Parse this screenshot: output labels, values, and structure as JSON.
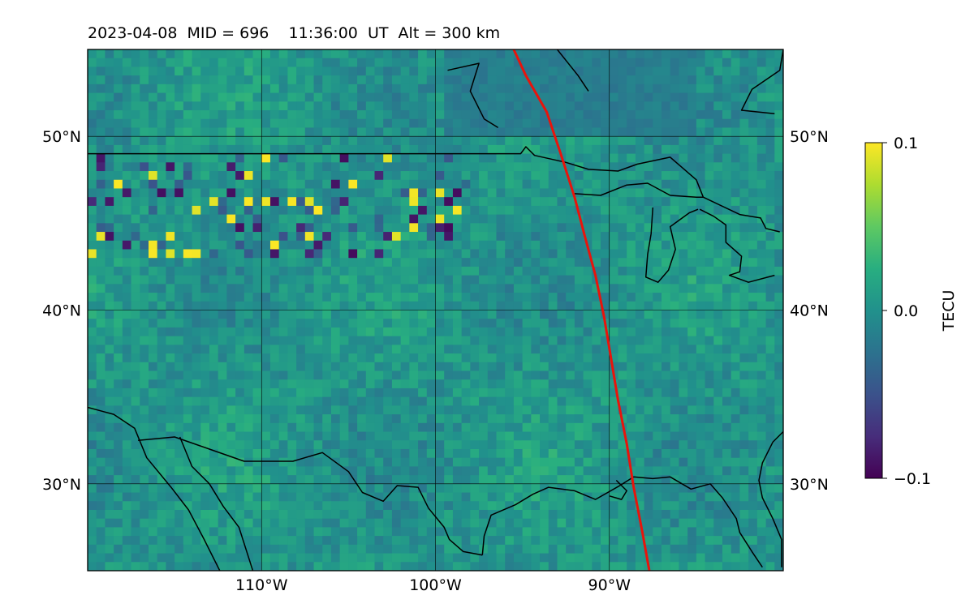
{
  "title": "2023-04-08  MID = 696    11:36:00  UT  Alt = 300 km",
  "map": {
    "lon_range": [
      -120,
      -80
    ],
    "lat_range": [
      25,
      55
    ],
    "lat_ticks": [
      {
        "value": 50,
        "label": "50°N"
      },
      {
        "value": 40,
        "label": "40°N"
      },
      {
        "value": 30,
        "label": "30°N"
      }
    ],
    "lon_ticks": [
      {
        "value": -110,
        "label": "110°W"
      },
      {
        "value": -100,
        "label": "100°W"
      },
      {
        "value": -90,
        "label": "90°W"
      }
    ],
    "gridlines": true,
    "field_colormap": "viridis",
    "eclipse_path_color": "#e8140c",
    "eclipse_path": [
      [
        -95.5,
        55
      ],
      [
        -94.8,
        53.5
      ],
      [
        -93.6,
        51.4
      ],
      [
        -92.8,
        49
      ],
      [
        -92.0,
        46.5
      ],
      [
        -91.4,
        44.2
      ],
      [
        -90.8,
        42.0
      ],
      [
        -90.3,
        39.6
      ],
      [
        -89.9,
        37.2
      ],
      [
        -89.5,
        34.8
      ],
      [
        -89.0,
        32.3
      ],
      [
        -88.6,
        29.8
      ],
      [
        -88.1,
        27.2
      ],
      [
        -87.7,
        25
      ]
    ],
    "coastlines": [
      [
        [
          -120,
          49
        ],
        [
          -95.1,
          49
        ],
        [
          -94.8,
          49.4
        ],
        [
          -94.3,
          48.9
        ],
        [
          -92.5,
          48.5
        ],
        [
          -91.2,
          48.1
        ],
        [
          -89.5,
          48.0
        ],
        [
          -88.4,
          48.4
        ],
        [
          -86.5,
          48.8
        ],
        [
          -85.0,
          47.5
        ],
        [
          -84.6,
          46.5
        ]
      ],
      [
        [
          -92.0,
          46.7
        ],
        [
          -90.5,
          46.6
        ],
        [
          -89.0,
          47.2
        ],
        [
          -87.8,
          47.3
        ],
        [
          -86.5,
          46.6
        ],
        [
          -85.0,
          46.5
        ],
        [
          -84.6,
          46.5
        ]
      ],
      [
        [
          -84.6,
          46.5
        ],
        [
          -82.5,
          45.5
        ],
        [
          -81.3,
          45.3
        ],
        [
          -81.0,
          44.7
        ],
        [
          -80.2,
          44.5
        ]
      ],
      [
        [
          -87.5,
          45.9
        ],
        [
          -87.6,
          44.4
        ],
        [
          -87.8,
          43.2
        ],
        [
          -87.9,
          41.9
        ],
        [
          -87.2,
          41.6
        ],
        [
          -86.6,
          42.3
        ],
        [
          -86.2,
          43.5
        ],
        [
          -86.5,
          44.8
        ],
        [
          -85.4,
          45.6
        ],
        [
          -84.9,
          45.8
        ]
      ],
      [
        [
          -84.8,
          45.8
        ],
        [
          -84.0,
          45.4
        ],
        [
          -83.3,
          44.9
        ],
        [
          -83.3,
          43.9
        ],
        [
          -82.4,
          43.1
        ],
        [
          -82.5,
          42.2
        ],
        [
          -83.1,
          42.0
        ],
        [
          -82.0,
          41.6
        ],
        [
          -80.5,
          42.0
        ]
      ],
      [
        [
          -120,
          34.4
        ],
        [
          -118.5,
          34.0
        ],
        [
          -117.3,
          33.2
        ],
        [
          -116.6,
          31.5
        ],
        [
          -115.2,
          29.8
        ],
        [
          -114.2,
          28.5
        ],
        [
          -113.3,
          26.8
        ],
        [
          -112.4,
          25
        ]
      ],
      [
        [
          -114.7,
          32.7
        ],
        [
          -114.0,
          31.0
        ],
        [
          -113.0,
          30.0
        ],
        [
          -112.2,
          28.7
        ],
        [
          -111.3,
          27.5
        ],
        [
          -110.5,
          25.0
        ]
      ],
      [
        [
          -117.1,
          32.5
        ],
        [
          -115.0,
          32.7
        ],
        [
          -113.0,
          32.0
        ],
        [
          -111.0,
          31.3
        ],
        [
          -108.2,
          31.3
        ],
        [
          -106.5,
          31.8
        ],
        [
          -105.0,
          30.7
        ],
        [
          -104.2,
          29.5
        ],
        [
          -103.0,
          29.0
        ],
        [
          -102.2,
          29.9
        ],
        [
          -101.0,
          29.8
        ],
        [
          -100.4,
          28.6
        ],
        [
          -99.5,
          27.5
        ],
        [
          -99.2,
          26.8
        ],
        [
          -98.4,
          26.1
        ],
        [
          -97.3,
          25.9
        ]
      ],
      [
        [
          -97.3,
          25.9
        ],
        [
          -97.2,
          27.0
        ],
        [
          -96.8,
          28.2
        ],
        [
          -95.4,
          28.8
        ],
        [
          -94.4,
          29.4
        ],
        [
          -93.5,
          29.8
        ],
        [
          -92.0,
          29.6
        ],
        [
          -90.8,
          29.1
        ],
        [
          -89.4,
          29.9
        ],
        [
          -88.6,
          30.4
        ],
        [
          -87.5,
          30.3
        ],
        [
          -86.5,
          30.4
        ],
        [
          -85.3,
          29.7
        ],
        [
          -84.2,
          30.0
        ],
        [
          -83.5,
          29.2
        ],
        [
          -82.7,
          28.0
        ],
        [
          -82.5,
          27.2
        ],
        [
          -81.8,
          26.1
        ],
        [
          -81.2,
          25.2
        ]
      ],
      [
        [
          -80.0,
          33.0
        ],
        [
          -80.6,
          32.4
        ],
        [
          -81.2,
          31.2
        ],
        [
          -81.4,
          30.2
        ],
        [
          -81.2,
          29.2
        ],
        [
          -80.6,
          28.0
        ],
        [
          -80.1,
          26.8
        ],
        [
          -80.1,
          25.2
        ]
      ],
      [
        [
          -89.6,
          30.2
        ],
        [
          -89.0,
          29.6
        ],
        [
          -89.3,
          29.1
        ],
        [
          -90.0,
          29.3
        ]
      ],
      [
        [
          -80.0,
          55
        ],
        [
          -80.2,
          53.8
        ],
        [
          -81.8,
          52.7
        ],
        [
          -82.4,
          51.5
        ],
        [
          -80.5,
          51.3
        ]
      ],
      [
        [
          -93.0,
          55
        ],
        [
          -91.8,
          53.5
        ],
        [
          -91.2,
          52.6
        ]
      ],
      [
        [
          -99.3,
          53.8
        ],
        [
          -97.5,
          54.2
        ],
        [
          -98.0,
          52.6
        ],
        [
          -97.2,
          51.0
        ],
        [
          -96.4,
          50.5
        ]
      ]
    ]
  },
  "colorbar": {
    "label": "TECU",
    "ticks": [
      {
        "value": 0.1,
        "label": "0.1"
      },
      {
        "value": 0.0,
        "label": "0.0"
      },
      {
        "value": -0.1,
        "label": "−0.1"
      }
    ],
    "range": [
      -0.1,
      0.1
    ],
    "colormap": "viridis"
  }
}
